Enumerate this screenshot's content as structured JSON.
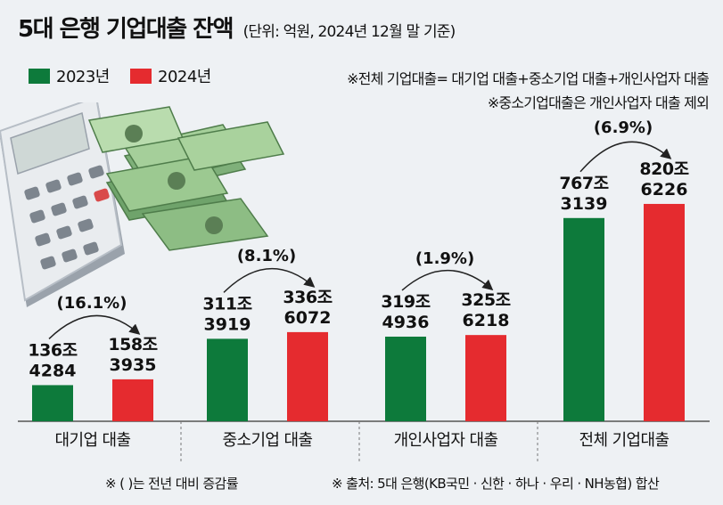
{
  "title": {
    "main": "5대 은행 기업대출 잔액",
    "sub": "(단위: 억원, 2024년 12월 말 기준)"
  },
  "legend": [
    {
      "label": "2023년",
      "color": "#0d7a3b"
    },
    {
      "label": "2024년",
      "color": "#e52b2f"
    }
  ],
  "notes": [
    "※전체 기업대출= 대기업 대출+중소기업 대출+개인사업자 대출",
    "※중소기업대출은 개인사업자 대출 제외"
  ],
  "footnotes": [
    "※ (   )는 전년 대비 증감률",
    "※ 출처: 5대 은행(KB국민 · 신한 · 하나 · 우리 · NH농협) 합산"
  ],
  "chart_data": {
    "type": "bar",
    "title": "5대 은행 기업대출 잔액",
    "unit": "억원",
    "categories": [
      "대기업 대출",
      "중소기업 대출",
      "개인사업자 대출",
      "전체 기업대출"
    ],
    "series": [
      {
        "name": "2023년",
        "color": "#0d7a3b",
        "values": [
          1364284,
          3113919,
          3194936,
          7673139
        ],
        "labels": [
          [
            "136조",
            "4284"
          ],
          [
            "311조",
            "3919"
          ],
          [
            "319조",
            "4936"
          ],
          [
            "767조",
            "3139"
          ]
        ]
      },
      {
        "name": "2024년",
        "color": "#e52b2f",
        "values": [
          1583935,
          3366072,
          3256218,
          8206226
        ],
        "labels": [
          [
            "158조",
            "3935"
          ],
          [
            "336조",
            "6072"
          ],
          [
            "325조",
            "6218"
          ],
          [
            "820조",
            "6226"
          ]
        ]
      }
    ],
    "growth": [
      "(16.1%)",
      "(8.1%)",
      "(1.9%)",
      "(6.9%)"
    ]
  }
}
